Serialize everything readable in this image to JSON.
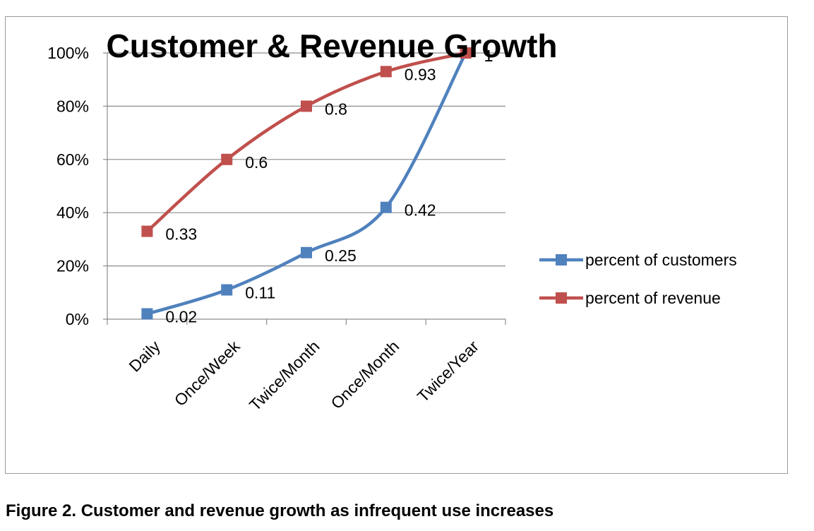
{
  "caption": "Figure 2. Customer and revenue growth as infrequent use increases",
  "chart_data": {
    "type": "line",
    "title": "Customer & Revenue Growth",
    "xlabel": "",
    "ylabel": "",
    "categories": [
      "Daily",
      "Once/Week",
      "Twice/Month",
      "Once/Month",
      "Twice/Year"
    ],
    "y_ticks": [
      "0%",
      "20%",
      "40%",
      "60%",
      "80%",
      "100%"
    ],
    "ylim": [
      0,
      1
    ],
    "grid": true,
    "legend_position": "right",
    "series": [
      {
        "name": "percent of customers",
        "color": "#4f81bd",
        "values": [
          0.02,
          0.11,
          0.25,
          0.42,
          1
        ],
        "labels": [
          "0.02",
          "0.11",
          "0.25",
          "0.42",
          "1"
        ]
      },
      {
        "name": "percent of revenue",
        "color": "#c0504d",
        "values": [
          0.33,
          0.6,
          0.8,
          0.93,
          1
        ],
        "labels": [
          "0.33",
          "0.6",
          "0.8",
          "0.93",
          "1"
        ]
      }
    ]
  }
}
